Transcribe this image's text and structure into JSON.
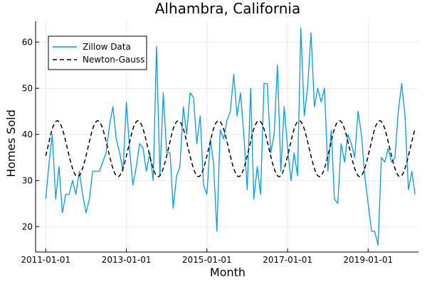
{
  "chart_data": {
    "type": "line",
    "title": "Alhambra, California",
    "xlabel": "Month",
    "ylabel": "Homes Sold",
    "xlim": [
      "2010-10-01",
      "2020-04-01"
    ],
    "ylim": [
      14.5,
      64.5
    ],
    "x_ticks": [
      "2011-01-01",
      "2013-01-01",
      "2015-01-01",
      "2017-01-01",
      "2019-01-01"
    ],
    "y_ticks": [
      20,
      30,
      40,
      50,
      60
    ],
    "grid": true,
    "legend_position": "top-left",
    "x_start": "2011-01-01",
    "x_frequency": "monthly",
    "series": [
      {
        "name": "Zillow Data",
        "style": "solid",
        "color": "#009AFA",
        "values": [
          26,
          34,
          40,
          26,
          33,
          23,
          27,
          27,
          30,
          27,
          32,
          27,
          23,
          26,
          32,
          32,
          32,
          34,
          36,
          42,
          46,
          39,
          36,
          32,
          47,
          36,
          29,
          33,
          38,
          37,
          32,
          36,
          30,
          59,
          31,
          49,
          36,
          36,
          24,
          31,
          33,
          46,
          40,
          49,
          48,
          38,
          44,
          29,
          27,
          39,
          34,
          19,
          41,
          39,
          43,
          45,
          53,
          44,
          49,
          40,
          28,
          50,
          26,
          33,
          27,
          51,
          51,
          36,
          40,
          55,
          32,
          46,
          37,
          30,
          36,
          31,
          63,
          44,
          50,
          62,
          46,
          50,
          47,
          50,
          32,
          41,
          26,
          25,
          38,
          34,
          40,
          38,
          35,
          45,
          40,
          31,
          25,
          19,
          19,
          16,
          35,
          34,
          37,
          34,
          35,
          45,
          51,
          44,
          28,
          32,
          27
        ]
      },
      {
        "name": "Newton-Gauss",
        "style": "dashed",
        "color": "#000000",
        "model": {
          "mean": 36.9,
          "amplitude": 6.05,
          "period_months": 12,
          "peak_month_offset": 3.5
        }
      }
    ]
  }
}
